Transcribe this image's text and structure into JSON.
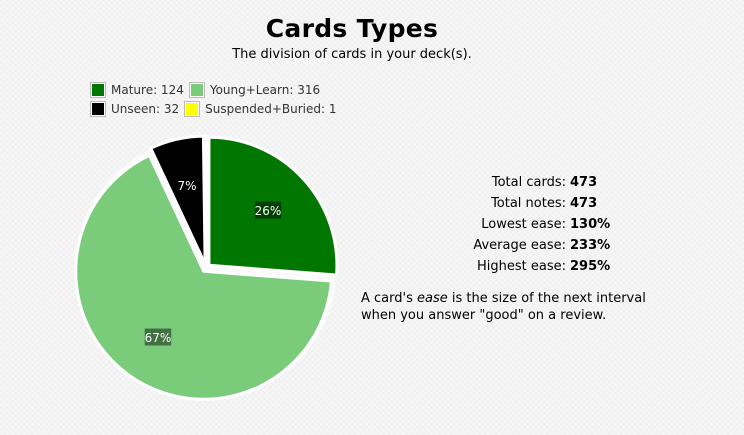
{
  "title": "Cards Types",
  "subtitle": "The division of cards in your deck(s).",
  "legend_rows": [
    [
      {
        "label": "Mature: 124",
        "color": "#007700"
      },
      {
        "label": "Young+Learn: 316",
        "color": "#7acc7a"
      }
    ],
    [
      {
        "label": "Unseen: 32",
        "color": "#000000"
      },
      {
        "label": "Suspended+Buried: 1",
        "color": "#ffff00"
      }
    ]
  ],
  "stats": [
    {
      "label": "Total cards:",
      "value": "473"
    },
    {
      "label": "Total notes:",
      "value": "473"
    },
    {
      "label": "Lowest ease:",
      "value": "130%"
    },
    {
      "label": "Average ease:",
      "value": "233%"
    },
    {
      "label": "Highest ease:",
      "value": "295%"
    }
  ],
  "note": {
    "before": "A card's ",
    "emph": "ease",
    "after": " is the size of the next interval when you answer \"good\" on a review."
  },
  "chart_data": {
    "type": "pie",
    "slices": [
      {
        "name": "Mature",
        "value": 124,
        "label": "26%",
        "color": "#007700"
      },
      {
        "name": "Young+Learn",
        "value": 316,
        "label": "67%",
        "color": "#7acc7a"
      },
      {
        "name": "Unseen",
        "value": 32,
        "label": "7%",
        "color": "#000000"
      },
      {
        "name": "Suspended+Buried",
        "value": 1,
        "label": "",
        "color": "#ffff00"
      }
    ],
    "legend": "top-left"
  }
}
